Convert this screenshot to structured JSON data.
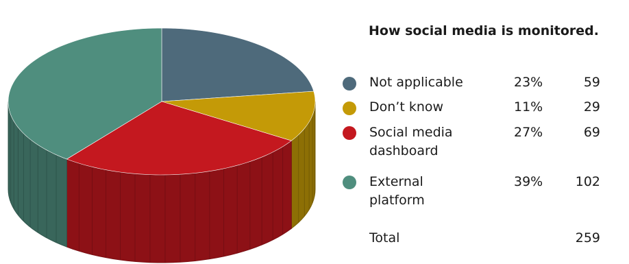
{
  "chart_data": {
    "type": "pie",
    "title": "How social media is monitored.",
    "slices": [
      {
        "label": "Not applicable",
        "pct_label": "23%",
        "count": 59,
        "color": "#4e6a7b"
      },
      {
        "label": "Don’t know",
        "pct_label": "11%",
        "count": 29,
        "color": "#c49a07"
      },
      {
        "label": "Social media dashboard",
        "pct_label": "27%",
        "count": 69,
        "color": "#c4181f"
      },
      {
        "label": "External platform",
        "pct_label": "39%",
        "count": 102,
        "color": "#4f8e7e"
      }
    ],
    "total_label": "Total",
    "total": 259
  }
}
